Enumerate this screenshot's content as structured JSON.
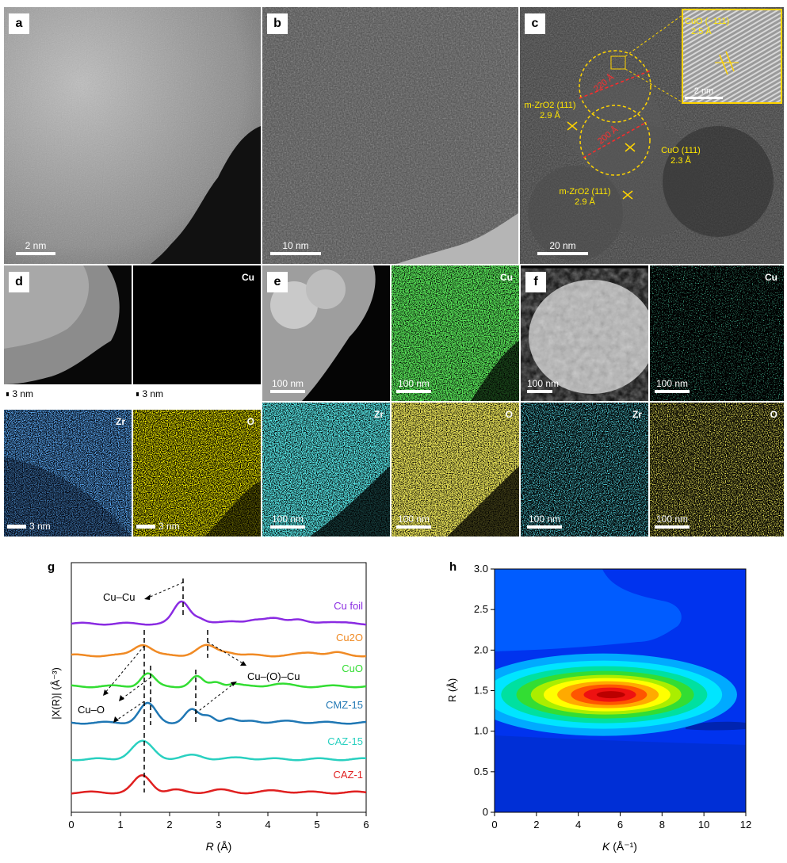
{
  "panels": {
    "a": {
      "label": "a",
      "scale": "2 nm"
    },
    "b": {
      "label": "b",
      "scale": "10 nm"
    },
    "c": {
      "label": "c",
      "scale": "20 nm",
      "inset_title": "CuO (−111)",
      "inset_d": "2.5 Å",
      "inset_scale": "2 nm",
      "ann1a": "m-ZrO2 (111)",
      "ann1b": "2.9 Å",
      "ann2a": "CuO (111)",
      "ann2b": "2.3 Å",
      "ann3a": "m-ZrO2 (111)",
      "ann3b": "2.9 Å",
      "size1": "220 Å",
      "size2": "200 Å"
    },
    "d": {
      "label": "d",
      "scale_haadf": "3 nm",
      "scale_cu": "3 nm",
      "scale_zr": "3 nm",
      "scale_o": "3 nm",
      "cu": "Cu",
      "zr": "Zr",
      "o": "O"
    },
    "e": {
      "label": "e",
      "scale": "100 nm",
      "cu": "Cu",
      "zr": "Zr",
      "o": "O"
    },
    "f": {
      "label": "f",
      "scale": "100 nm",
      "cu": "Cu",
      "zr": "Zr",
      "o": "O"
    }
  },
  "chart_g": {
    "label": "g",
    "type": "line",
    "xlabel_var": "R",
    "xlabel_unit": "(Å)",
    "ylabel": "|X(R)| (Å⁻³)",
    "xlim": [
      0,
      6
    ],
    "xticks": [
      "0",
      "1",
      "2",
      "3",
      "4",
      "5",
      "6"
    ],
    "series": [
      {
        "name": "Cu foil",
        "color": "#8a2be2"
      },
      {
        "name": "Cu2O",
        "color": "#f08a24"
      },
      {
        "name": "CuO",
        "color": "#33dd33"
      },
      {
        "name": "CMZ-15",
        "color": "#1f77b4"
      },
      {
        "name": "CAZ-15",
        "color": "#2ad0c0"
      },
      {
        "name": "CAZ-1",
        "color": "#e02020"
      }
    ],
    "annotations": {
      "cucu": "Cu–Cu",
      "cuo": "Cu–O",
      "cuocu": "Cu–(O)–Cu"
    }
  },
  "chart_h": {
    "label": "h",
    "type": "heatmap",
    "xlabel_var": "K",
    "xlabel_unit": "(Å⁻¹)",
    "ylabel": "R (Å)",
    "xlim": [
      0,
      12
    ],
    "ylim": [
      0,
      3.0
    ],
    "xticks": [
      "0",
      "2",
      "4",
      "6",
      "8",
      "10",
      "12"
    ],
    "yticks": [
      "0",
      "0.5",
      "1.0",
      "1.5",
      "2.0",
      "2.5",
      "3.0"
    ],
    "peak": {
      "k": 5.6,
      "r": 1.45
    }
  }
}
